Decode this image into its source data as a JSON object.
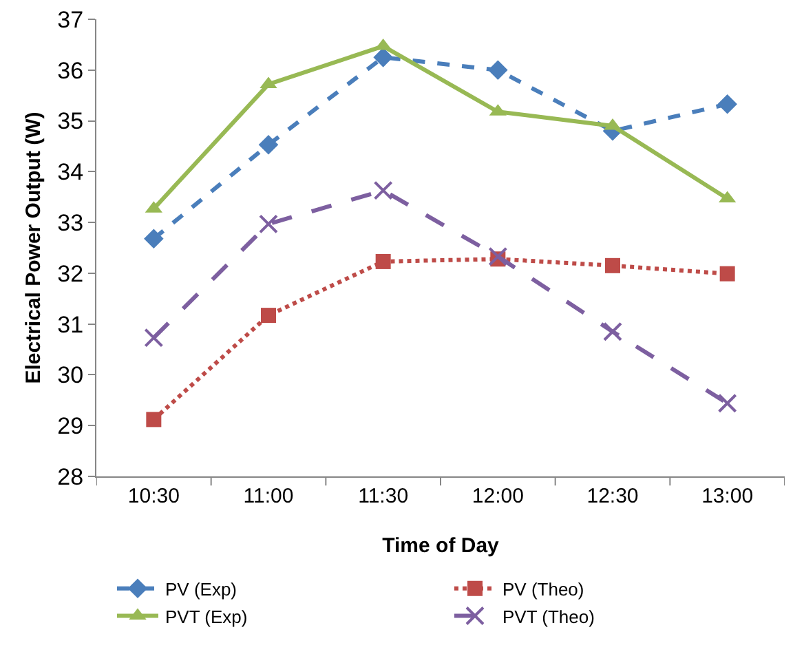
{
  "chart_data": {
    "type": "line",
    "xlabel": "Time of Day",
    "ylabel": "Electrical Power Output (W)",
    "categories": [
      "10:30",
      "11:00",
      "11:30",
      "12:00",
      "12:30",
      "13:00"
    ],
    "ylim": [
      28,
      37
    ],
    "yticks": [
      28,
      29,
      30,
      31,
      32,
      33,
      34,
      35,
      36,
      37
    ],
    "grid": false,
    "legend": "bottom",
    "series": [
      {
        "name": "PV (Exp)",
        "color": "#4a7ebb",
        "marker": "diamond",
        "line_style": "dashed",
        "values": [
          32.68,
          34.53,
          36.25,
          36.0,
          34.8,
          35.33
        ]
      },
      {
        "name": "PV (Theo)",
        "color": "#be4b48",
        "marker": "square",
        "line_style": "dotted",
        "values": [
          29.12,
          31.17,
          32.23,
          32.28,
          32.15,
          31.99
        ]
      },
      {
        "name": "PVT (Exp)",
        "color": "#98b954",
        "marker": "triangle",
        "line_style": "solid",
        "values": [
          33.27,
          35.72,
          36.47,
          35.18,
          34.9,
          33.47
        ]
      },
      {
        "name": "PVT (Theo)",
        "color": "#7d5fa0",
        "marker": "cross",
        "line_style": "longdash",
        "values": [
          30.73,
          32.97,
          33.63,
          32.33,
          30.85,
          29.44
        ]
      }
    ]
  }
}
